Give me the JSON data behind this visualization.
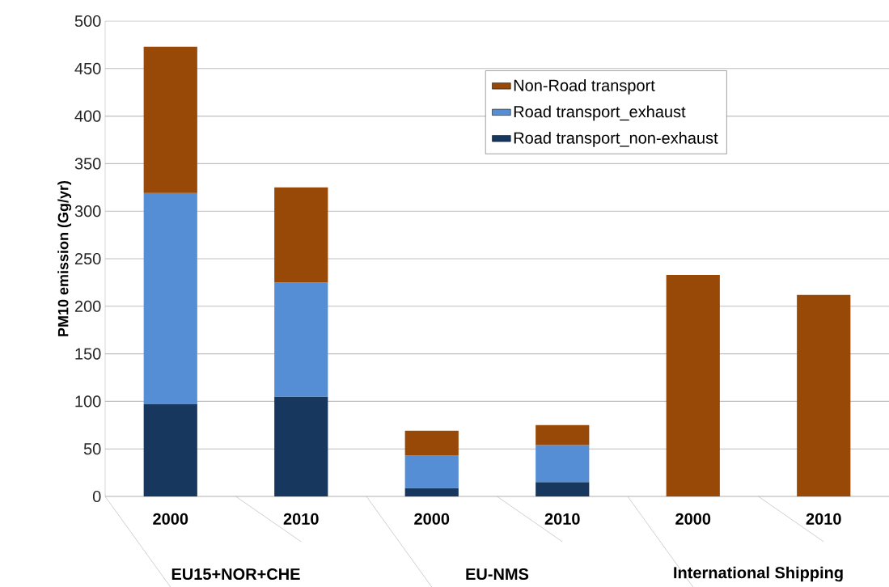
{
  "chart_data": {
    "type": "bar",
    "ylabel": "PM10 emission (Gg/yr)",
    "categories": [
      "2000",
      "2010",
      "2000",
      "2010",
      "2000",
      "2010"
    ],
    "annotations": [
      "EU15+NOR+CHE",
      "EU-NMS",
      "International Shipping"
    ],
    "stacked": true,
    "series": [
      {
        "name": "Road transport_non-exhaust",
        "color": "#17375e",
        "values": [
          97,
          105,
          9,
          15,
          null,
          null
        ]
      },
      {
        "name": "Road transport_exhaust",
        "color": "#558ed5",
        "values": [
          222,
          120,
          34,
          39,
          null,
          null
        ]
      },
      {
        "name": "Non-Road transport",
        "color": "#984807",
        "values": [
          154,
          100,
          26,
          21,
          233,
          212
        ]
      }
    ],
    "ylim": [
      0,
      500
    ],
    "yticks": [
      0,
      50,
      100,
      150,
      200,
      250,
      300,
      350,
      400,
      450,
      500
    ],
    "grid": "y",
    "legend": "top right"
  }
}
